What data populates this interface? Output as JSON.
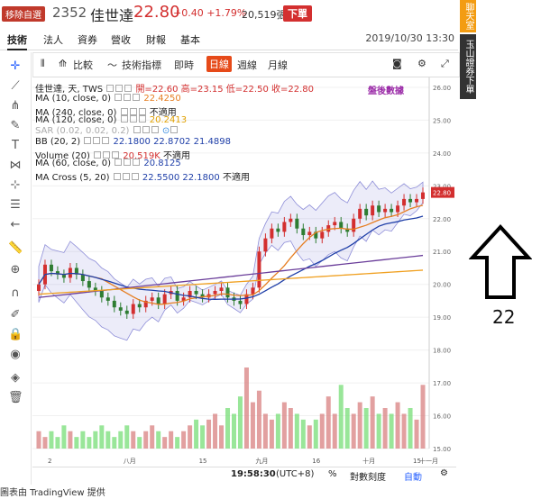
{
  "header": {
    "remove_label": "移除自選",
    "code": "2352",
    "name": "佳世達",
    "price": "22.80",
    "change": "+0.40 +1.79%",
    "volume": "20,519張",
    "order_label": "下單"
  },
  "tabs": [
    {
      "label": "技術"
    },
    {
      "label": "法人"
    },
    {
      "label": "資券"
    },
    {
      "label": "營收"
    },
    {
      "label": "財報"
    },
    {
      "label": "基本"
    }
  ],
  "datetime": "2019/10/30 13:30",
  "toolbar": {
    "compare": "比較",
    "indicators": "技術指標",
    "intraday": "即時",
    "daily": "日線",
    "weekly": "週線",
    "monthly": "月線"
  },
  "legend": {
    "symbol": "佳世達, 天, TWS",
    "ohlc": "開=22.60 高=23.15 低=22.50 收=22.80",
    "after_hours": "盤後數據",
    "ma10": "MA (10, close, 0)",
    "ma10_val": "22.4250",
    "ma240": "MA (240, close, 0)",
    "ma240_val": "不適用",
    "ma120": "MA (120, close, 0)",
    "ma120_val": "20.2413",
    "sar": "SAR (0.02, 0.02, 0.2)",
    "bb": "BB (20, 2)",
    "bb_val": "22.1800  22.8702  21.4898",
    "volume": "Volume (20)",
    "volume_val": "20.519K",
    "volume_na": "不適用",
    "ma60": "MA (60, close, 0)",
    "ma60_val": "20.8125",
    "macross": "MA Cross (5, 20)",
    "macross_val": "22.5500  22.1800",
    "macross_na": "不適用"
  },
  "y_axis": [
    "26.00",
    "25.00",
    "24.00",
    "23.00",
    "22.00",
    "21.00",
    "20.00",
    "19.00",
    "18.00",
    "17.00",
    "16.00",
    "15.00"
  ],
  "price_tag": "22.80",
  "x_axis": [
    "2",
    "八月",
    "15",
    "九月",
    "16",
    "十月",
    "15",
    "十一月"
  ],
  "status": {
    "time": "19:58:30",
    "tz": "(UTC+8)",
    "pct": "%",
    "log": "對數刻度",
    "auto": "自動"
  },
  "footer": "圖表由 TradingView 提供",
  "sidebar": {
    "chat": "聊天室",
    "broker": "玉山證券下單"
  },
  "annotation": {
    "number": "22"
  },
  "colors": {
    "up": "#d32f2f",
    "down": "#2e7d32",
    "ma10": "#e67e22",
    "ma60": "#1f3fa8",
    "ma120": "#6a3d9a",
    "ma240": "#f0a020",
    "bb": "#8e8ed8"
  },
  "chart_data": {
    "type": "candlestick",
    "closes": [
      20.0,
      20.6,
      20.4,
      20.3,
      20.2,
      20.5,
      20.3,
      20.1,
      19.9,
      19.8,
      19.6,
      19.5,
      19.3,
      19.2,
      19.1,
      19.4,
      19.3,
      19.5,
      19.6,
      19.4,
      19.7,
      19.8,
      19.5,
      19.6,
      19.8,
      19.7,
      19.6,
      19.7,
      19.8,
      19.9,
      19.6,
      19.5,
      19.4,
      19.7,
      19.9,
      21.0,
      21.4,
      21.7,
      21.6,
      21.9,
      22.0,
      21.7,
      21.5,
      21.6,
      21.4,
      21.6,
      21.8,
      21.9,
      21.7,
      21.6,
      22.0,
      22.3,
      22.1,
      22.4,
      22.2,
      22.3,
      22.2,
      22.4,
      22.6,
      22.5,
      22.6,
      22.8
    ],
    "volumes": [
      3,
      2,
      3,
      2,
      4,
      3,
      2,
      3,
      2,
      3,
      4,
      3,
      2,
      3,
      4,
      3,
      2,
      3,
      4,
      3,
      2,
      3,
      2,
      3,
      4,
      5,
      4,
      5,
      6,
      4,
      7,
      6,
      9,
      14,
      8,
      10,
      6,
      5,
      6,
      8,
      7,
      6,
      5,
      4,
      5,
      6,
      9,
      6,
      11,
      7,
      6,
      8,
      7,
      9,
      6,
      7,
      6,
      8,
      6,
      7,
      5,
      11
    ],
    "ylim": [
      15,
      26.3
    ]
  }
}
